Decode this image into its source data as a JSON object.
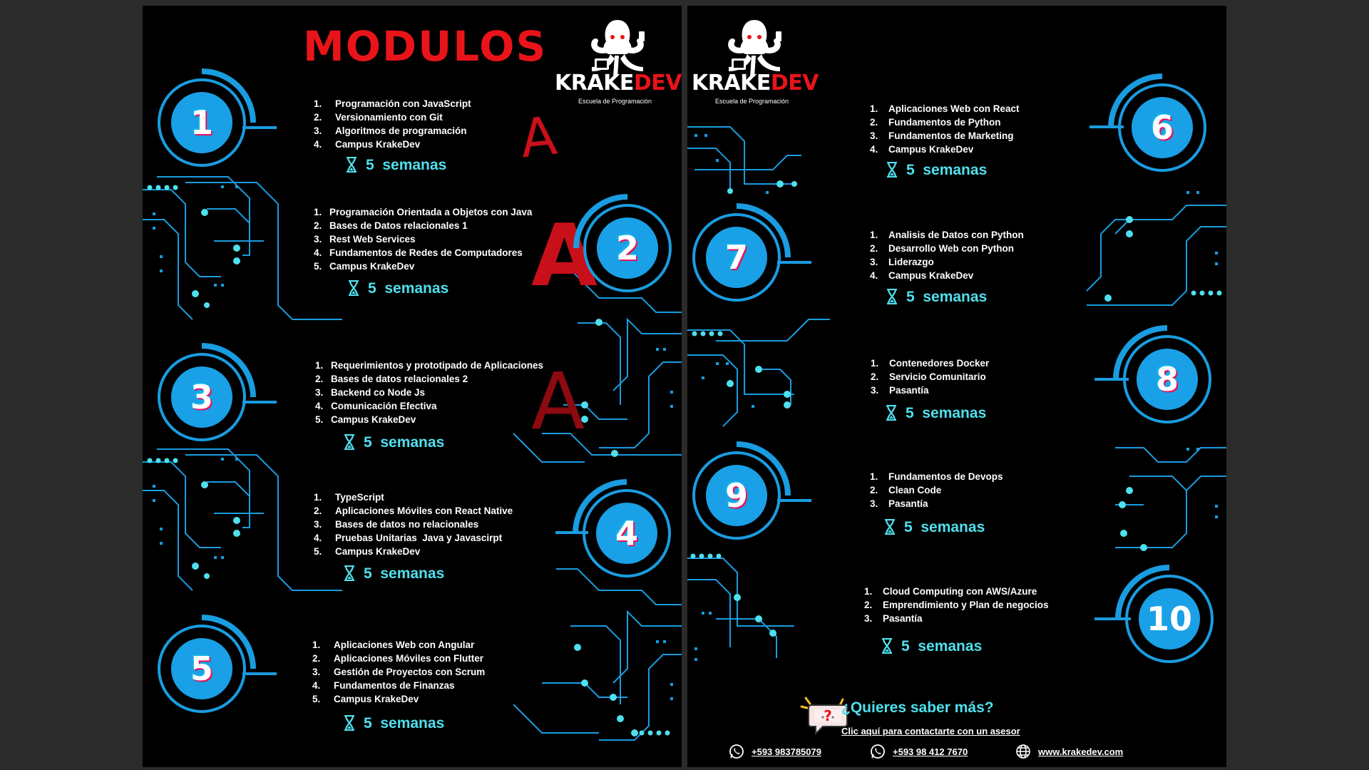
{
  "colors": {
    "accent_blue": "#1a9ce0",
    "accent_cyan": "#4fe0ee",
    "brand_red": "#e8141a",
    "background": "#000000"
  },
  "title": "MODULOS",
  "logo": {
    "brand_prefix": "KRAKE",
    "brand_suffix": "DEV",
    "tagline": "Escuela de Programación",
    "icon": "kraken-logo"
  },
  "modules": [
    {
      "number": "1",
      "items": [
        "Programación con JavaScript",
        "Versionamiento con Git",
        "Algoritmos de programación",
        "Campus KrakeDev"
      ],
      "duration": "5  semanas"
    },
    {
      "number": "2",
      "items": [
        "Programación Orientada a Objetos con Java",
        "Bases de Datos relacionales 1",
        "Rest Web Services",
        "Fundamentos de Redes de Computadores",
        "Campus KrakeDev"
      ],
      "duration": "5  semanas"
    },
    {
      "number": "3",
      "items": [
        "Requerimientos y prototipado de Aplicaciones",
        "Bases de datos relacionales 2",
        "Backend co Node Js",
        "Comunicación Efectiva",
        "Campus KrakeDev"
      ],
      "duration": "5  semanas"
    },
    {
      "number": "4",
      "items": [
        "TypeScript",
        "Aplicaciones Móviles con React Native",
        "Bases de datos no relacionales",
        "Pruebas Unitarias  Java y Javascirpt",
        "Campus KrakeDev"
      ],
      "duration": "5  semanas"
    },
    {
      "number": "5",
      "items": [
        "Aplicaciones Web con Angular",
        "Aplicaciones Móviles con Flutter",
        "Gestión de Proyectos con Scrum",
        "Fundamentos de Finanzas",
        "Campus KrakeDev"
      ],
      "duration": "5  semanas"
    },
    {
      "number": "6",
      "items": [
        "Aplicaciones Web con React",
        "Fundamentos de Python",
        "Fundamentos de Marketing",
        "Campus KrakeDev"
      ],
      "duration": "5  semanas"
    },
    {
      "number": "7",
      "items": [
        "Analisis de Datos con Python",
        "Desarrollo Web con Python",
        "Liderazgo",
        "Campus KrakeDev"
      ],
      "duration": "5  semanas"
    },
    {
      "number": "8",
      "items": [
        "Contenedores Docker",
        "Servicio Comunitario",
        "Pasantía"
      ],
      "duration": "5  semanas"
    },
    {
      "number": "9",
      "items": [
        "Fundamentos de Devops",
        "Clean Code",
        "Pasantía"
      ],
      "duration": "5  semanas"
    },
    {
      "number": "10",
      "items": [
        "Cloud Computing con AWS/Azure",
        "Emprendimiento y Plan de negocios",
        "Pasantía"
      ],
      "duration": "5  semanas"
    }
  ],
  "annotations": [
    "A",
    "A",
    "A"
  ],
  "cta": {
    "question": "¿Quieres saber más?",
    "link": "Clic aquí para contactarte con un asesor",
    "icon": "chat-question-icon"
  },
  "contacts": [
    {
      "icon": "whatsapp-icon",
      "text": "+593 983785079"
    },
    {
      "icon": "whatsapp-icon",
      "text": "+593 98 412 7670"
    },
    {
      "icon": "globe-icon",
      "text": "www.krakedev.com"
    }
  ]
}
